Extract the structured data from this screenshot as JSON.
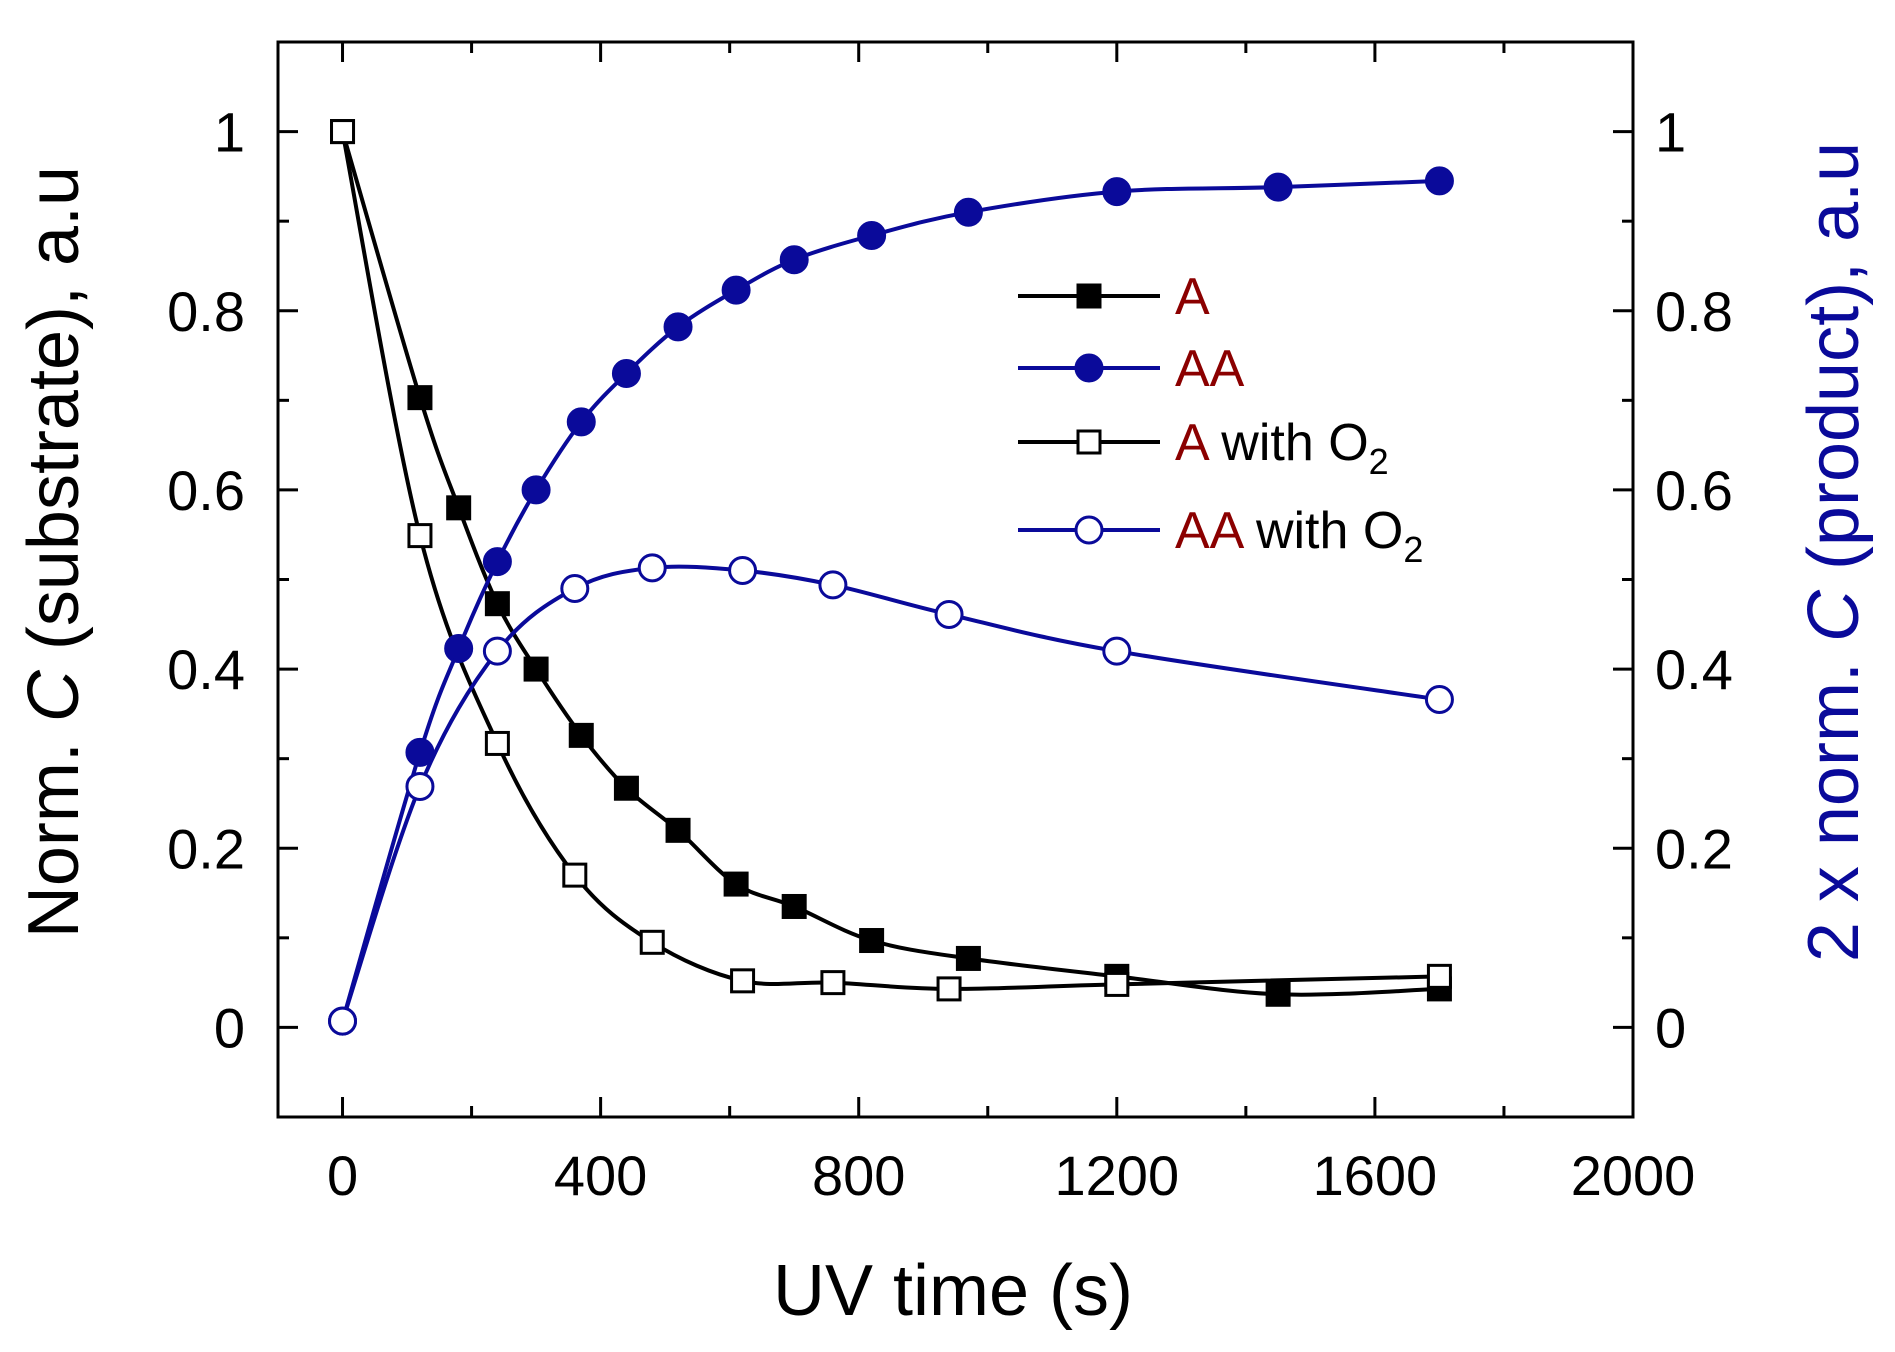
{
  "chart_data": {
    "type": "line",
    "xlabel": "UV time (s)",
    "ylabel_left": {
      "prefix": "Norm. ",
      "italic": "C",
      "suffix": " (substrate), a.u"
    },
    "ylabel_right": {
      "prefix": "2 x norm. ",
      "italic": "C",
      "suffix": " (product), a.u"
    },
    "xlim": [
      -100,
      2000
    ],
    "ylim": [
      -0.1,
      1.1
    ],
    "x_ticks": [
      0,
      400,
      800,
      1200,
      1600,
      2000
    ],
    "x_tick_labels": [
      "0",
      "400",
      "800",
      "1200",
      "1600",
      "2000"
    ],
    "y_ticks": [
      0,
      0.2,
      0.4,
      0.6,
      0.8,
      1
    ],
    "y_tick_labels": [
      "0",
      "0.2",
      "0.4",
      "0.6",
      "0.8",
      "1"
    ],
    "grid": false,
    "legend_position": "top-right",
    "colors": {
      "black": "#000000",
      "blue": "#0a0a9a",
      "legend_name": "#8b0000"
    },
    "series": [
      {
        "name": "A",
        "legend_name": "A",
        "legend_suffix": "",
        "legend_sub": "",
        "marker": "square",
        "filled": true,
        "color": "#000000",
        "x": [
          0,
          120,
          180,
          240,
          300,
          370,
          440,
          520,
          610,
          700,
          820,
          970,
          1200,
          1450,
          1700
        ],
        "y": [
          1.0,
          0.703,
          0.58,
          0.473,
          0.4,
          0.326,
          0.267,
          0.22,
          0.16,
          0.135,
          0.097,
          0.077,
          0.057,
          0.037,
          0.043
        ]
      },
      {
        "name": "AA",
        "legend_name": "AA",
        "legend_suffix": "",
        "legend_sub": "",
        "marker": "circle",
        "filled": true,
        "color": "#0a0a9a",
        "x": [
          0,
          120,
          180,
          240,
          300,
          370,
          440,
          520,
          610,
          700,
          820,
          970,
          1200,
          1450,
          1700
        ],
        "y": [
          0.007,
          0.307,
          0.423,
          0.52,
          0.6,
          0.676,
          0.73,
          0.782,
          0.823,
          0.857,
          0.884,
          0.91,
          0.933,
          0.938,
          0.945
        ]
      },
      {
        "name": "A with O2",
        "legend_name": "A",
        "legend_suffix": " with O",
        "legend_sub": "2",
        "marker": "square",
        "filled": false,
        "color": "#000000",
        "x": [
          0,
          120,
          240,
          360,
          480,
          620,
          760,
          940,
          1200,
          1700
        ],
        "y": [
          1.0,
          0.549,
          0.317,
          0.17,
          0.095,
          0.052,
          0.05,
          0.043,
          0.048,
          0.057
        ]
      },
      {
        "name": "AA with O2",
        "legend_name": "AA",
        "legend_suffix": " with O",
        "legend_sub": "2",
        "marker": "circle",
        "filled": false,
        "color": "#0a0a9a",
        "x": [
          0,
          120,
          240,
          360,
          480,
          620,
          760,
          940,
          1200,
          1700
        ],
        "y": [
          0.007,
          0.269,
          0.42,
          0.49,
          0.513,
          0.51,
          0.494,
          0.461,
          0.42,
          0.366
        ]
      }
    ]
  }
}
